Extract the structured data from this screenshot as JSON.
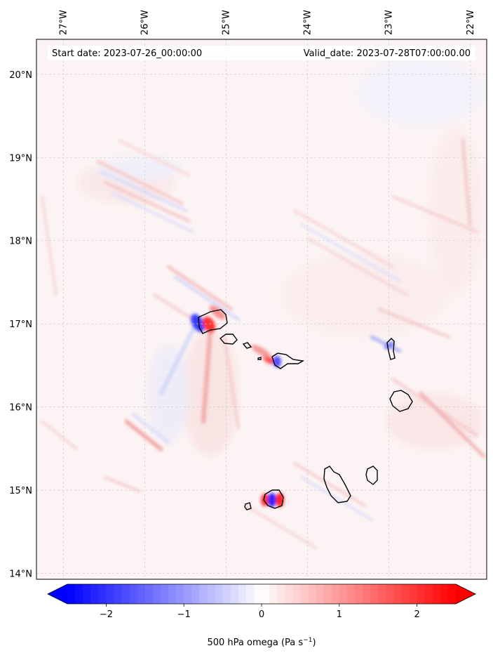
{
  "map": {
    "start_label": "Start date: 2023-07-26_00:00:00",
    "valid_label": "Valid_date: 2023-07-28T07:00:00.00",
    "lon_ticks": [
      {
        "value": -27,
        "label": "27°W"
      },
      {
        "value": -26,
        "label": "26°W"
      },
      {
        "value": -25,
        "label": "25°W"
      },
      {
        "value": -24,
        "label": "24°W"
      },
      {
        "value": -23,
        "label": "23°W"
      },
      {
        "value": -22,
        "label": "22°W"
      }
    ],
    "lat_ticks": [
      {
        "value": 20,
        "label": "20°N"
      },
      {
        "value": 19,
        "label": "19°N"
      },
      {
        "value": 18,
        "label": "18°N"
      },
      {
        "value": 17,
        "label": "17°N"
      },
      {
        "value": 16,
        "label": "16°N"
      },
      {
        "value": 15,
        "label": "15°N"
      },
      {
        "value": 14,
        "label": "14°N"
      }
    ],
    "extent": {
      "lon_min": -27.33,
      "lon_max": -21.8,
      "lat_min": 13.93,
      "lat_max": 20.42
    },
    "gridlines": true,
    "islands": [
      {
        "name_visible": false,
        "lon": -24.97,
        "lat": 17.05
      },
      {
        "name_visible": false,
        "lon": -24.98,
        "lat": 16.85
      },
      {
        "name_visible": false,
        "lon": -24.62,
        "lat": 16.75
      },
      {
        "name_visible": false,
        "lon": -24.17,
        "lat": 16.6
      },
      {
        "name_visible": false,
        "lon": -22.93,
        "lat": 16.72
      },
      {
        "name_visible": false,
        "lon": -22.88,
        "lat": 16.09
      },
      {
        "name_visible": false,
        "lon": -23.63,
        "lat": 15.08
      },
      {
        "name_visible": false,
        "lon": -23.15,
        "lat": 15.18
      },
      {
        "name_visible": false,
        "lon": -24.35,
        "lat": 14.91
      },
      {
        "name_visible": false,
        "lon": -24.68,
        "lat": 14.87
      }
    ]
  },
  "colorbar": {
    "label_main": "500 hPa omega (Pa s",
    "label_sup": "−1",
    "label_close": ")",
    "ticks": [
      {
        "value": -2,
        "label": "−2"
      },
      {
        "value": -1,
        "label": "−1"
      },
      {
        "value": 0,
        "label": "0"
      },
      {
        "value": 1,
        "label": "1"
      },
      {
        "value": 2,
        "label": "2"
      }
    ],
    "min": -2.5,
    "max": 2.5,
    "low_color": "#0000ff",
    "mid_color": "#ffffff",
    "high_color": "#ff0000"
  }
}
